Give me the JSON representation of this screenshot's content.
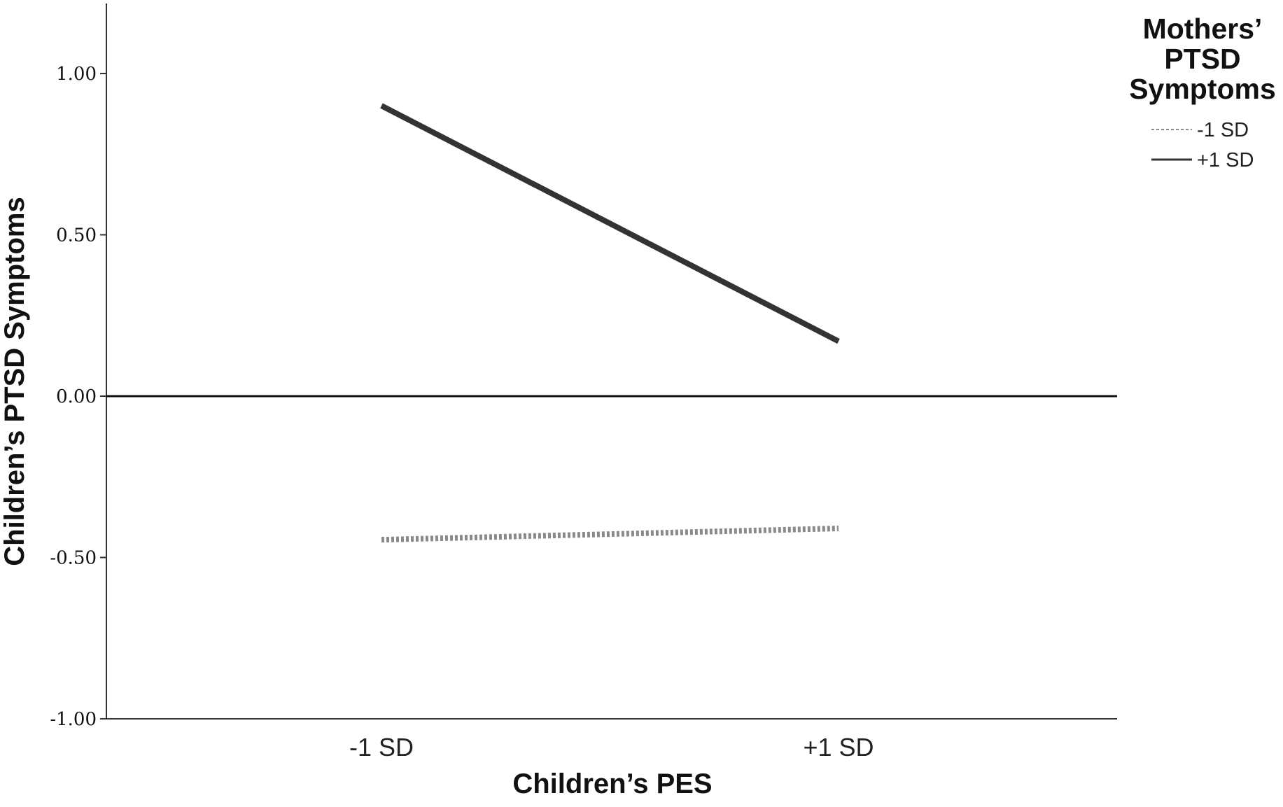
{
  "chart_data": {
    "type": "line",
    "xlabel": "Children’s PES",
    "ylabel": "Children’s PTSD Symptoms",
    "categories": [
      "-1 SD",
      "+1 SD"
    ],
    "ylim": [
      -1.0,
      1.2
    ],
    "yticks": [
      "1.00",
      "0.50",
      "0.00",
      "-0.50",
      "-1.00"
    ],
    "ytick_values": [
      1.0,
      0.5,
      0.0,
      -0.5,
      -1.0
    ],
    "reference_line_y": 0.0,
    "grid": false,
    "legend": {
      "title_lines": [
        "Mothers’",
        "PTSD",
        "Symptoms"
      ],
      "placement": "top-right"
    },
    "series": [
      {
        "name": "-1 SD",
        "values": [
          -0.445,
          -0.41
        ],
        "style": "dotted",
        "color": "#8a8a8a"
      },
      {
        "name": "+1 SD",
        "values": [
          0.9,
          0.17
        ],
        "style": "solid",
        "color": "#333333"
      }
    ]
  }
}
